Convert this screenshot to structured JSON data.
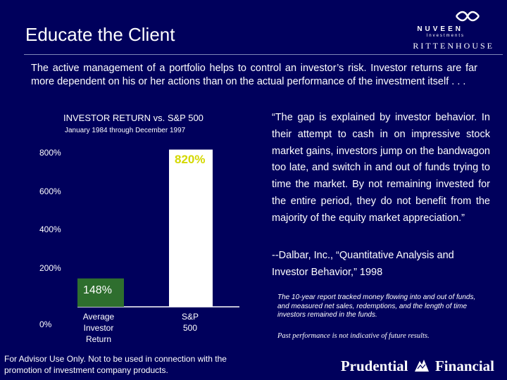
{
  "slide": {
    "title": "Educate the Client",
    "intro": "The active management of a portfolio helps to control an investor’s risk.   Investor returns are far more dependent on his or her actions than on the actual performance of the investment itself . . .",
    "quote": "“The gap is explained by investor behavior.  In their attempt to cash in on impressive stock market gains, investors jump on the bandwagon too late, and switch in and out of funds trying to time the market.  By not remaining invested for the entire period, they do not benefit from the majority of the equity market appreciation.”",
    "citation": "--Dalbar, Inc., “Quantitative Analysis and Investor Behavior,” 1998",
    "note": "The 10-year report tracked money flowing into and out of funds, and measured net sales, redemptions, and the length of time investors remained in the funds.",
    "past_performance": "Past performance is not indicative of future results.",
    "footer": "For Advisor Use Only.  Not to be used in connection with the promotion of investment company products."
  },
  "logos": {
    "nuveen": "NUVEEN",
    "investments": "Investments",
    "rittenhouse": "RITTENHOUSE",
    "prudential": "Prudential",
    "financial": "Financial"
  },
  "chart_data": {
    "type": "bar",
    "title": "INVESTOR RETURN vs. S&P 500",
    "subtitle": "January 1984 through December 1997",
    "categories": [
      "Average Investor Return",
      "S&P 500"
    ],
    "values": [
      148,
      820
    ],
    "value_labels": [
      "148%",
      "820%"
    ],
    "yticks": [
      0,
      200,
      400,
      600,
      800
    ],
    "ytick_labels": [
      "0%",
      "200%",
      "400%",
      "600%",
      "800%"
    ],
    "ylim": [
      0,
      850
    ],
    "grid": false,
    "bar_colors": [
      "#2e6e2e",
      "#ffffff"
    ],
    "value_label_colors": [
      "#ffffff",
      "#d4d800"
    ]
  }
}
